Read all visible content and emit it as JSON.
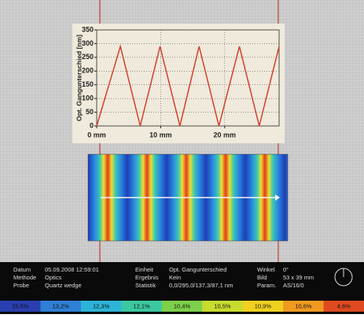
{
  "chart_data": {
    "type": "line",
    "y_label": "Opt. Gangunterschied [nm]",
    "x": [
      0,
      3.7,
      6.8,
      9.9,
      13.0,
      16.0,
      19.1,
      22.3,
      25.4,
      28.5
    ],
    "series": [
      {
        "color": "#d2402e",
        "values": [
          0,
          290,
          0,
          290,
          0,
          290,
          0,
          290,
          0,
          290
        ]
      }
    ],
    "xlim": [
      0,
      28.5
    ],
    "xticks": [
      {
        "value": 0,
        "label": "0 mm"
      },
      {
        "value": 10,
        "label": "10 mm"
      },
      {
        "value": 20,
        "label": "20 mm"
      }
    ],
    "ylim": [
      0,
      350
    ],
    "yticks": [
      0,
      50,
      100,
      150,
      200,
      250,
      300,
      350
    ],
    "grid": true
  },
  "info": {
    "columns": [
      [
        {
          "label": "Datum",
          "value": "05.09.2008 12:59:01"
        },
        {
          "label": "Methode",
          "value": "Optics"
        },
        {
          "label": "Probe",
          "value": "Quartz wedge"
        }
      ],
      [
        {
          "label": "Einheit",
          "value": "Opt. Gangunterschied"
        },
        {
          "label": "Ergebnis",
          "value": "Kein"
        },
        {
          "label": "Statistik",
          "value": "0,0/295,0/137,3/87,1 nm"
        }
      ],
      [
        {
          "label": "Winkel",
          "value": "0°"
        },
        {
          "label": "Bild",
          "value": "53 x 39 mm"
        },
        {
          "label": "Param.",
          "value": "AS/16/0"
        }
      ]
    ]
  },
  "scale": {
    "segments": [
      {
        "label": "15,5%",
        "color": "#2a3fb0"
      },
      {
        "label": "13,2%",
        "color": "#2f7fd6"
      },
      {
        "label": "12,3%",
        "color": "#2cb4d8"
      },
      {
        "label": "12,1%",
        "color": "#3cc8a0"
      },
      {
        "label": "10,4%",
        "color": "#7ed04a"
      },
      {
        "label": "10,5%",
        "color": "#c8dc30"
      },
      {
        "label": "10,9%",
        "color": "#f0d020"
      },
      {
        "label": "10,6%",
        "color": "#f09a20"
      },
      {
        "label": "4,6%",
        "color": "#e04a20"
      }
    ]
  }
}
